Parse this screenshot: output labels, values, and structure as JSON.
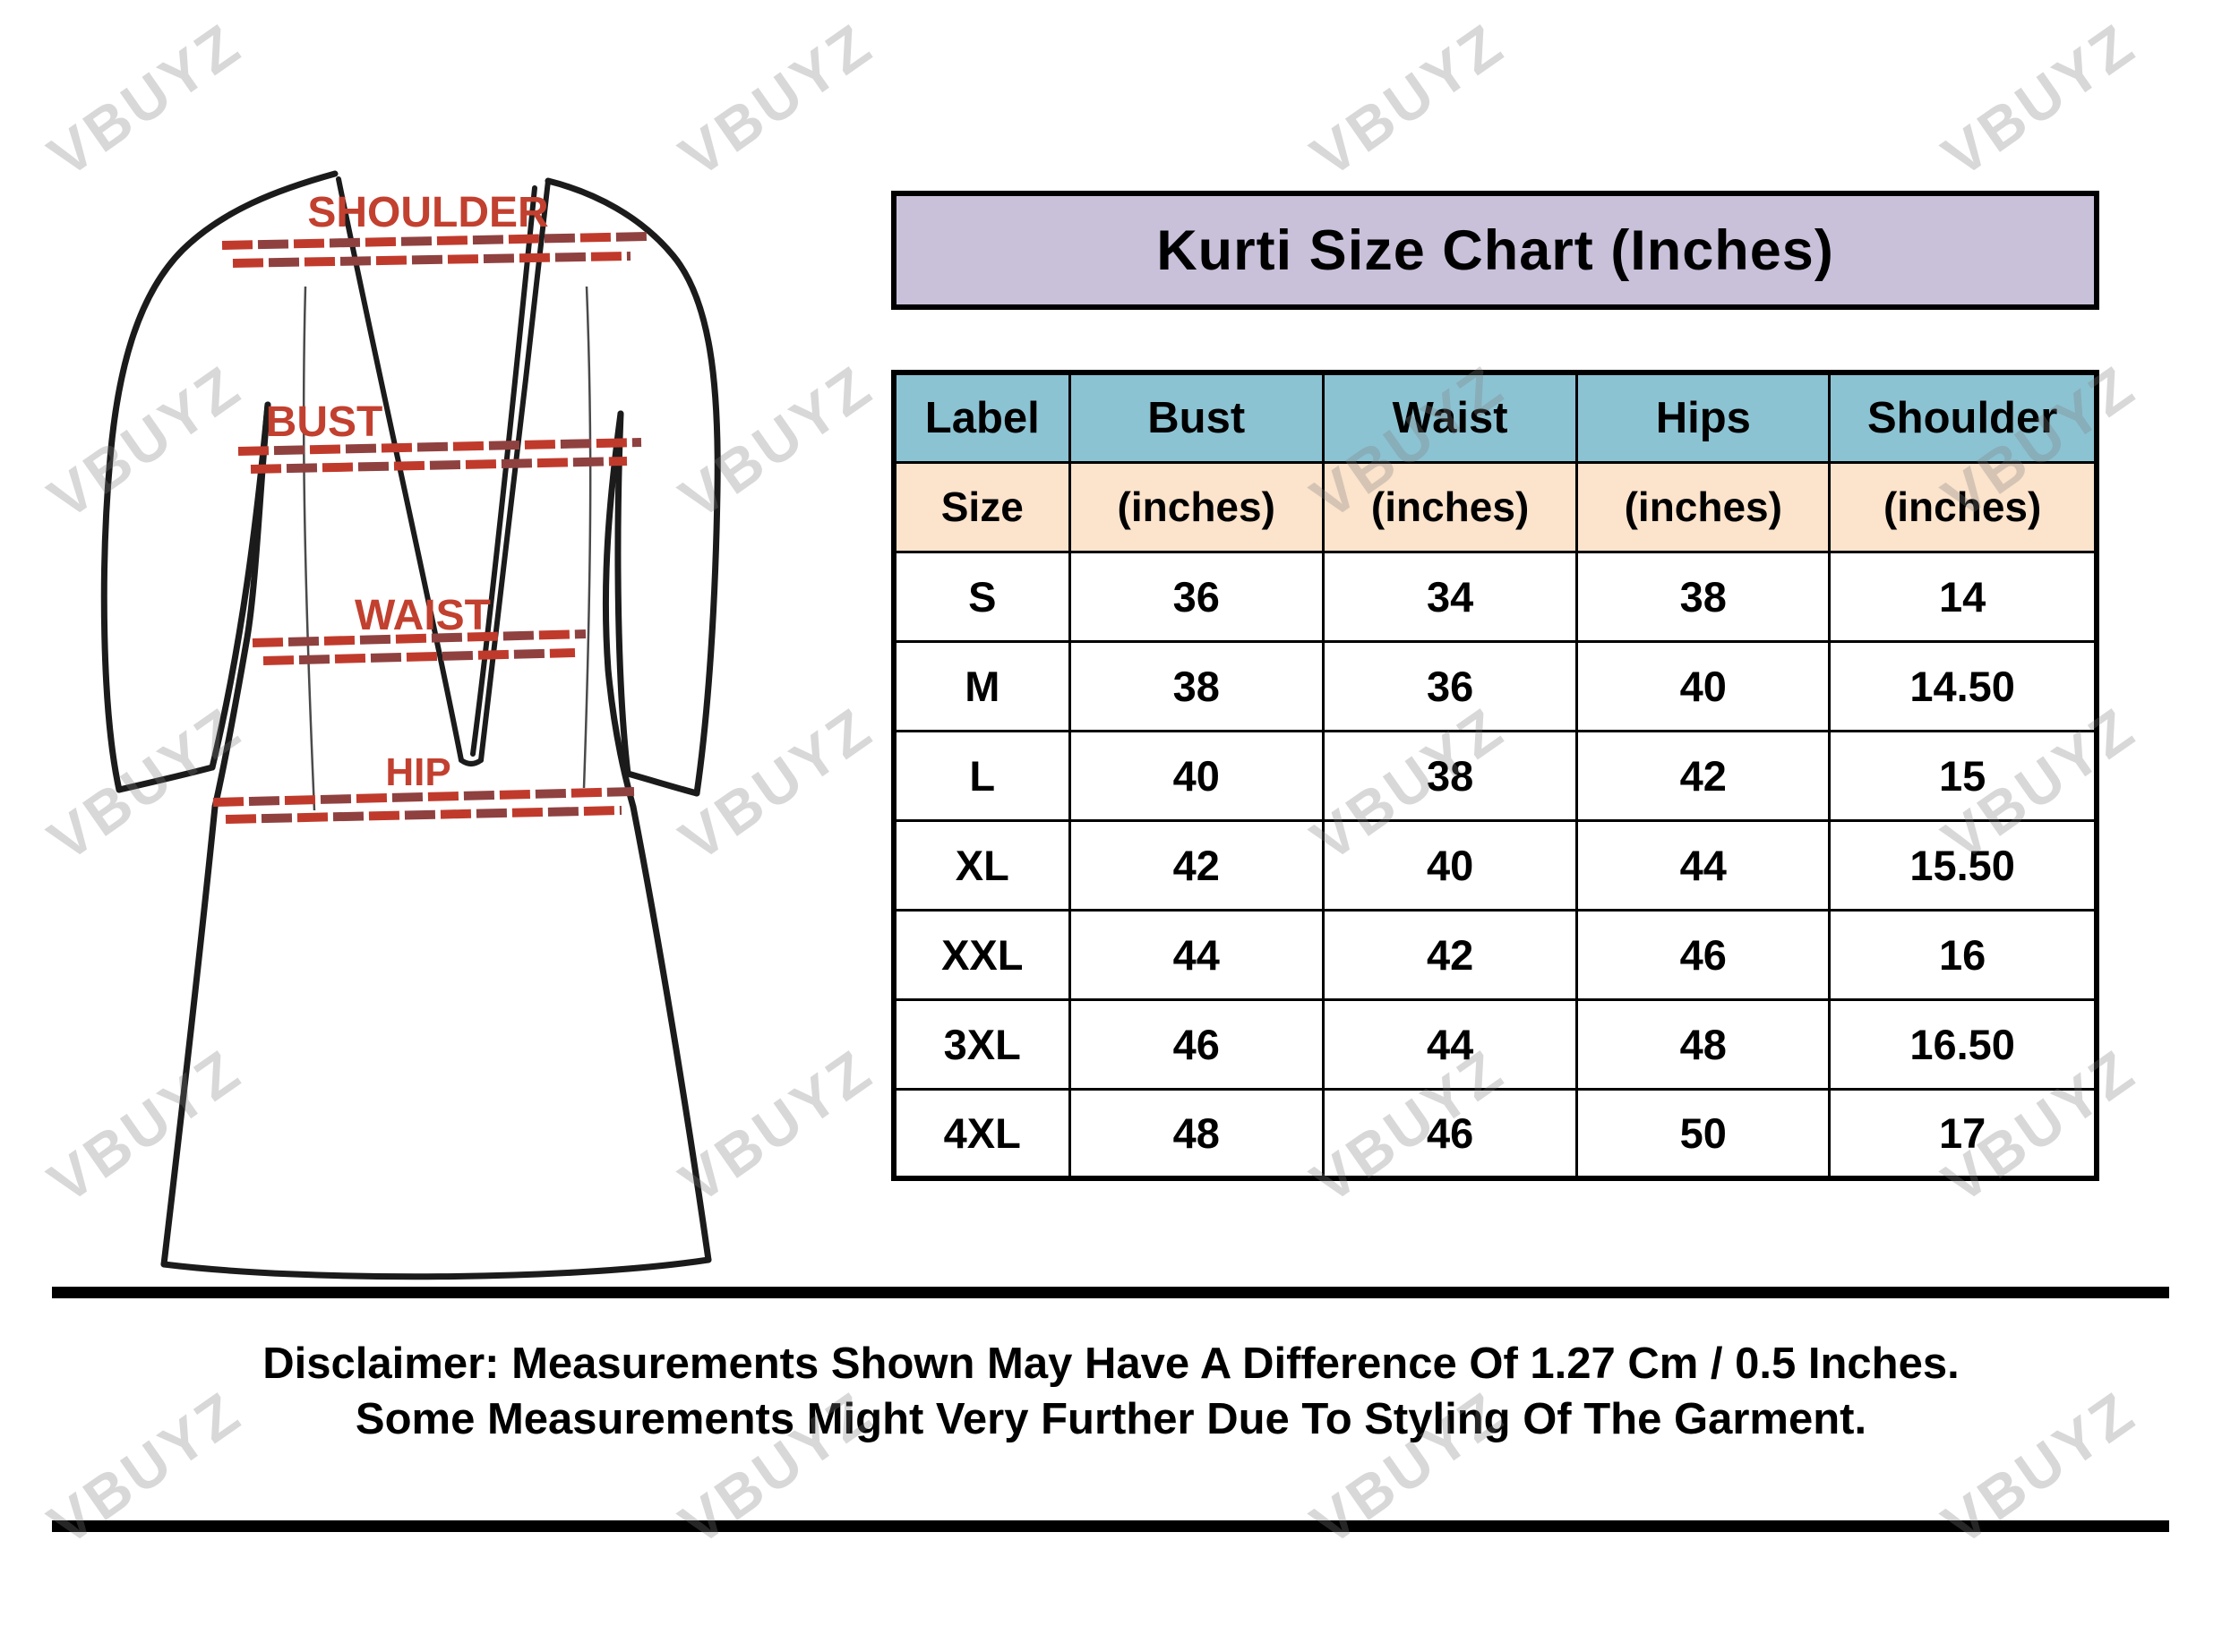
{
  "title": "Kurti Size Chart (Inches)",
  "watermark": {
    "text": "VBUYZ"
  },
  "diagram": {
    "labels": [
      "SHOULDER",
      "BUST",
      "WAIST",
      "HIP"
    ]
  },
  "table": {
    "header": [
      "Label",
      "Bust",
      "Waist",
      "Hips",
      "Shoulder"
    ],
    "subheader": [
      "Size",
      "(inches)",
      "(inches)",
      "(inches)",
      "(inches)"
    ],
    "rows": [
      [
        "S",
        "36",
        "34",
        "38",
        "14"
      ],
      [
        "M",
        "38",
        "36",
        "40",
        "14.50"
      ],
      [
        "L",
        "40",
        "38",
        "42",
        "15"
      ],
      [
        "XL",
        "42",
        "40",
        "44",
        "15.50"
      ],
      [
        "XXL",
        "44",
        "42",
        "46",
        "16"
      ],
      [
        "3XL",
        "46",
        "44",
        "48",
        "16.50"
      ],
      [
        "4XL",
        "48",
        "46",
        "50",
        "17"
      ]
    ]
  },
  "disclaimer": {
    "line1": "Disclaimer: Measurements Shown May Have A Difference Of 1.27 Cm / 0.5 Inches.",
    "line2": "Some Measurements Might Very Further Due To Styling Of The Garment."
  },
  "colors": {
    "title_background": "#c9c0da",
    "header_blue": "#8cc3d3",
    "subheader_peach": "#fbe3cc",
    "label_red": "#c2402f",
    "dash_red": "#c03a2c",
    "dash_maroon": "#8f4140",
    "border_black": "#000000",
    "watermark_gray": "#c9c9c9"
  }
}
